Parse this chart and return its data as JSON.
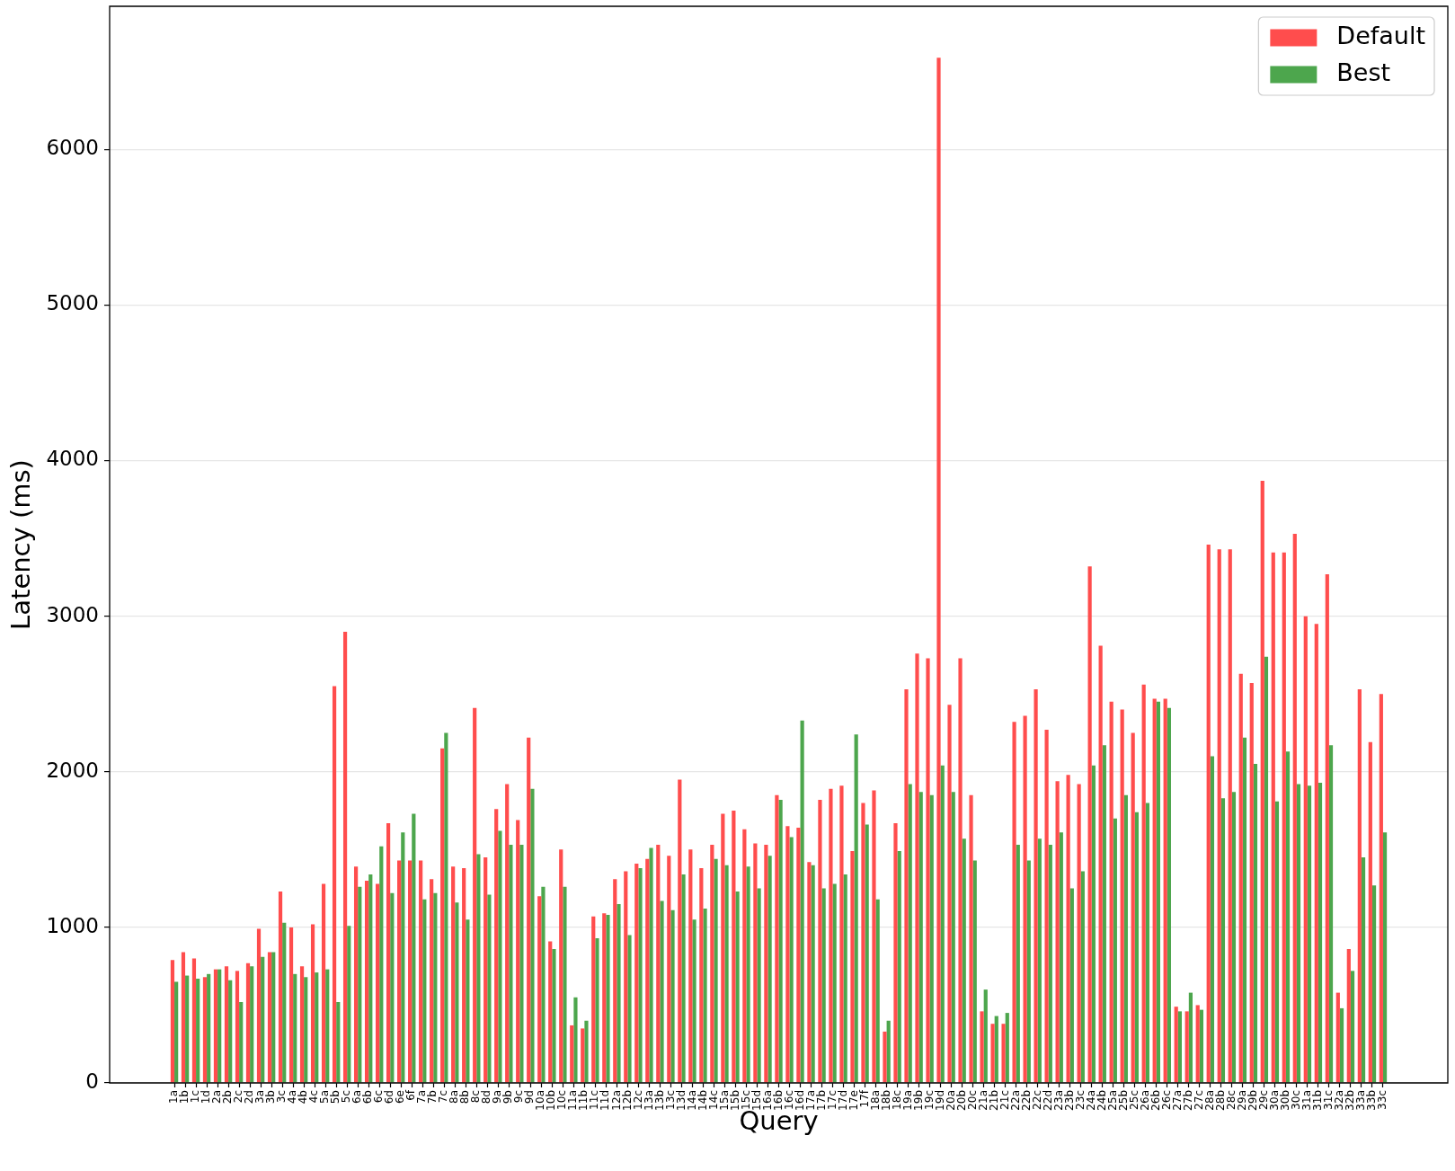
{
  "chart_data": {
    "type": "bar",
    "xlabel": "Query",
    "ylabel": "Latency (ms)",
    "categories": [
      "1a",
      "1b",
      "1c",
      "1d",
      "2a",
      "2b",
      "2c",
      "2d",
      "3a",
      "3b",
      "3c",
      "4a",
      "4b",
      "4c",
      "5a",
      "5b",
      "5c",
      "6a",
      "6b",
      "6c",
      "6d",
      "6e",
      "6f",
      "7a",
      "7b",
      "7c",
      "8a",
      "8b",
      "8c",
      "8d",
      "9a",
      "9b",
      "9c",
      "9d",
      "10a",
      "10b",
      "10c",
      "11a",
      "11b",
      "11c",
      "11d",
      "12a",
      "12b",
      "12c",
      "13a",
      "13b",
      "13c",
      "13d",
      "14a",
      "14b",
      "14c",
      "15a",
      "15b",
      "15c",
      "15d",
      "16a",
      "16b",
      "16c",
      "16d",
      "17a",
      "17b",
      "17c",
      "17d",
      "17e",
      "17f",
      "18a",
      "18b",
      "18c",
      "19a",
      "19b",
      "19c",
      "19d",
      "20a",
      "20b",
      "20c",
      "21a",
      "21b",
      "21c",
      "22a",
      "22b",
      "22c",
      "22d",
      "23a",
      "23b",
      "23c",
      "24a",
      "24b",
      "25a",
      "25b",
      "25c",
      "26a",
      "26b",
      "26c",
      "27a",
      "27b",
      "27c",
      "28a",
      "28b",
      "28c",
      "29a",
      "29b",
      "29c",
      "30a",
      "30b",
      "30c",
      "31a",
      "31b",
      "31c",
      "32a",
      "32b",
      "33a",
      "33b",
      "33c"
    ],
    "series": [
      {
        "name": "Default",
        "color": "#ff4d4d",
        "values": [
          790,
          840,
          800,
          680,
          730,
          750,
          720,
          770,
          990,
          840,
          1230,
          1000,
          750,
          1020,
          1280,
          2550,
          2900,
          1390,
          1300,
          1280,
          1670,
          1430,
          1430,
          1430,
          1310,
          2150,
          1390,
          1380,
          2410,
          1450,
          1760,
          1920,
          1690,
          2220,
          1200,
          910,
          1500,
          370,
          350,
          1070,
          1090,
          1310,
          1360,
          1410,
          1440,
          1530,
          1460,
          1950,
          1500,
          1380,
          1530,
          1730,
          1750,
          1630,
          1540,
          1530,
          1850,
          1650,
          1640,
          1420,
          1820,
          1890,
          1910,
          1490,
          1800,
          1880,
          330,
          1670,
          2530,
          2760,
          2730,
          6590,
          2430,
          2730,
          1850,
          460,
          380,
          380,
          2320,
          2360,
          2530,
          2270,
          1940,
          1980,
          1920,
          3320,
          2810,
          2450,
          2400,
          2250,
          2560,
          2470,
          2470,
          490,
          460,
          500,
          3460,
          3430,
          3430,
          2630,
          2570,
          3870,
          3410,
          3410,
          3530,
          3000,
          2950,
          3270,
          580,
          860,
          2530,
          2190,
          2500
        ]
      },
      {
        "name": "Best",
        "color": "#4da64d",
        "values": [
          650,
          690,
          670,
          700,
          730,
          660,
          520,
          750,
          810,
          840,
          1030,
          700,
          680,
          710,
          730,
          520,
          1010,
          1260,
          1340,
          1520,
          1220,
          1610,
          1730,
          1180,
          1220,
          2250,
          1160,
          1050,
          1470,
          1210,
          1620,
          1530,
          1530,
          1890,
          1260,
          860,
          1260,
          550,
          400,
          930,
          1080,
          1150,
          950,
          1380,
          1510,
          1170,
          1110,
          1340,
          1050,
          1120,
          1440,
          1400,
          1230,
          1390,
          1250,
          1460,
          1820,
          1580,
          2330,
          1400,
          1250,
          1280,
          1340,
          2240,
          1660,
          1180,
          400,
          1490,
          1920,
          1870,
          1850,
          2040,
          1870,
          1570,
          1430,
          600,
          430,
          450,
          1530,
          1430,
          1570,
          1530,
          1610,
          1250,
          1360,
          2040,
          2170,
          1700,
          1850,
          1740,
          1800,
          2450,
          2410,
          460,
          580,
          470,
          2100,
          1830,
          1870,
          2220,
          2050,
          2740,
          1810,
          2130,
          1920,
          1910,
          1930,
          2170,
          480,
          720,
          1450,
          1270,
          1610
        ]
      }
    ],
    "ylim": [
      0,
      6920
    ],
    "yticks": [
      0,
      1000,
      2000,
      3000,
      4000,
      5000,
      6000
    ],
    "grid": "y",
    "legend": "top right"
  }
}
